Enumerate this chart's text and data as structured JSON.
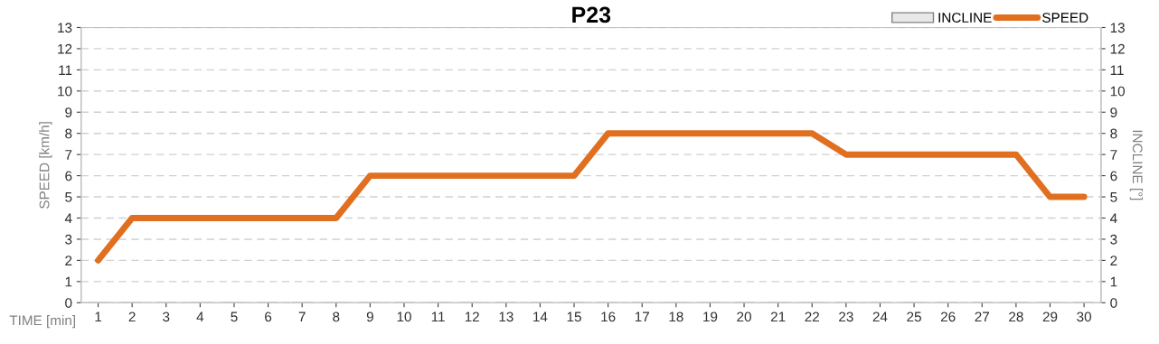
{
  "chart_data": {
    "type": "line",
    "title": "P23",
    "xlabel": "TIME [min]",
    "ylabel": "SPEED [km/h]",
    "y2label": "INCLINE [°]",
    "categories": [
      "1",
      "2",
      "3",
      "4",
      "5",
      "6",
      "7",
      "8",
      "9",
      "10",
      "11",
      "12",
      "13",
      "14",
      "15",
      "16",
      "17",
      "18",
      "19",
      "20",
      "21",
      "22",
      "23",
      "24",
      "25",
      "26",
      "27",
      "28",
      "29",
      "30"
    ],
    "series": [
      {
        "name": "INCLINE",
        "type": "bar",
        "axis": "y2",
        "color": "#e8e8e8",
        "values": [
          0,
          0,
          0,
          0,
          0,
          0,
          0,
          0,
          0,
          0,
          0,
          0,
          0,
          0,
          0,
          0,
          0,
          0,
          0,
          0,
          0,
          0,
          0,
          0,
          0,
          0,
          0,
          0,
          0,
          0
        ]
      },
      {
        "name": "SPEED",
        "color": "#e07020",
        "values": [
          2,
          4,
          4,
          4,
          4,
          4,
          4,
          4,
          6,
          6,
          6,
          6,
          6,
          6,
          6,
          8,
          8,
          8,
          8,
          8,
          8,
          8,
          7,
          7,
          7,
          7,
          7,
          7,
          5,
          5
        ]
      }
    ],
    "ylim": [
      0,
      13
    ],
    "yticks": [
      0,
      1,
      2,
      3,
      4,
      5,
      6,
      7,
      8,
      9,
      10,
      11,
      12,
      13
    ],
    "y2lim": [
      0,
      13
    ],
    "y2ticks": [
      0,
      1,
      2,
      3,
      4,
      5,
      6,
      7,
      8,
      9,
      10,
      11,
      12,
      13
    ],
    "grid": "y",
    "legend": "top right",
    "marker": "none",
    "line_style": "solid"
  }
}
